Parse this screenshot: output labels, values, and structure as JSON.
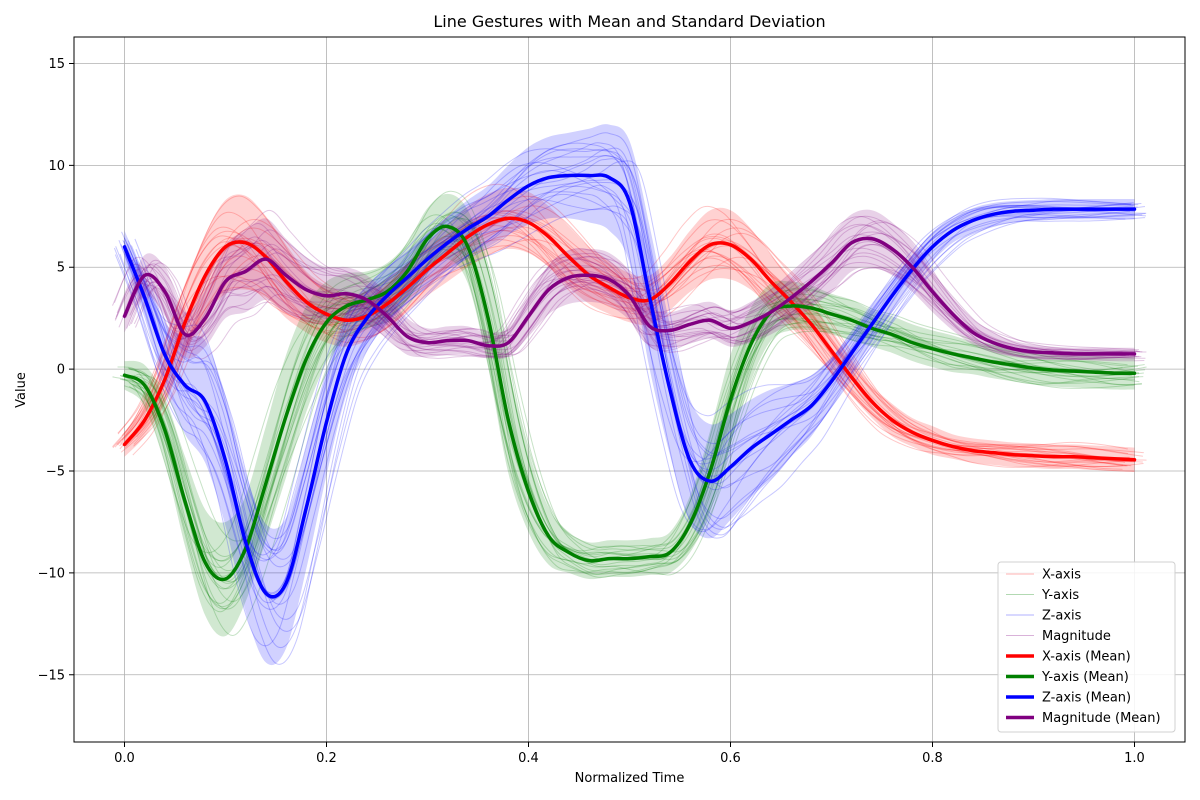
{
  "chart_data": {
    "type": "line",
    "title": "Line Gestures with Mean and Standard Deviation",
    "xlabel": "Normalized Time",
    "ylabel": "Value",
    "xlim": [
      -0.05,
      1.05
    ],
    "ylim": [
      -18.3,
      16.3
    ],
    "xticks": [
      0.0,
      0.2,
      0.4,
      0.6,
      0.8,
      1.0
    ],
    "xtick_labels": [
      "0.0",
      "0.2",
      "0.4",
      "0.6",
      "0.8",
      "1.0"
    ],
    "yticks": [
      -15,
      -10,
      -5,
      0,
      5,
      10,
      15
    ],
    "ytick_labels": [
      "−15",
      "−10",
      "−5",
      "0",
      "5",
      "10",
      "15"
    ],
    "grid": true,
    "legend_position": "bottom-right",
    "legend": [
      {
        "label": "X-axis",
        "color": "#ff0000",
        "style": "thin"
      },
      {
        "label": "Y-axis",
        "color": "#008000",
        "style": "thin"
      },
      {
        "label": "Z-axis",
        "color": "#0000ff",
        "style": "thin"
      },
      {
        "label": "Magnitude",
        "color": "#800080",
        "style": "thin"
      },
      {
        "label": "X-axis (Mean)",
        "color": "#ff0000",
        "style": "thick"
      },
      {
        "label": "Y-axis (Mean)",
        "color": "#008000",
        "style": "thick"
      },
      {
        "label": "Z-axis (Mean)",
        "color": "#0000ff",
        "style": "thick"
      },
      {
        "label": "Magnitude (Mean)",
        "color": "#800080",
        "style": "thick"
      }
    ],
    "x": [
      0.0,
      0.02,
      0.04,
      0.06,
      0.08,
      0.1,
      0.12,
      0.14,
      0.16,
      0.18,
      0.2,
      0.22,
      0.24,
      0.26,
      0.28,
      0.3,
      0.32,
      0.34,
      0.36,
      0.38,
      0.4,
      0.42,
      0.44,
      0.46,
      0.48,
      0.5,
      0.52,
      0.54,
      0.56,
      0.58,
      0.6,
      0.62,
      0.64,
      0.66,
      0.68,
      0.7,
      0.72,
      0.74,
      0.76,
      0.78,
      0.8,
      0.82,
      0.84,
      0.86,
      0.88,
      0.9,
      0.92,
      0.94,
      0.96,
      0.98,
      1.0
    ],
    "series": [
      {
        "name": "X-axis (Mean)",
        "color": "#ff0000",
        "values": [
          -3.7,
          -2.5,
          -0.5,
          2.3,
          4.6,
          6.0,
          6.2,
          5.5,
          4.3,
          3.3,
          2.7,
          2.4,
          2.6,
          3.2,
          4.0,
          4.9,
          5.7,
          6.5,
          7.1,
          7.4,
          7.2,
          6.5,
          5.5,
          4.6,
          4.0,
          3.5,
          3.4,
          4.2,
          5.3,
          6.1,
          6.1,
          5.4,
          4.3,
          3.3,
          2.2,
          0.9,
          -0.4,
          -1.6,
          -2.5,
          -3.1,
          -3.5,
          -3.8,
          -4.0,
          -4.1,
          -4.2,
          -4.25,
          -4.3,
          -4.3,
          -4.35,
          -4.4,
          -4.45
        ],
        "spread": [
          0.6,
          0.8,
          1.2,
          1.6,
          2.0,
          2.3,
          2.3,
          2.0,
          1.8,
          1.5,
          1.4,
          1.3,
          1.2,
          1.2,
          1.2,
          1.3,
          1.4,
          1.5,
          1.5,
          1.5,
          1.5,
          1.5,
          1.5,
          1.4,
          1.3,
          1.2,
          1.2,
          1.3,
          1.5,
          1.7,
          1.7,
          1.5,
          1.3,
          1.2,
          1.1,
          1.0,
          0.9,
          0.8,
          0.8,
          0.7,
          0.7,
          0.6,
          0.6,
          0.6,
          0.6,
          0.6,
          0.6,
          0.6,
          0.6,
          0.6,
          0.6
        ]
      },
      {
        "name": "Y-axis (Mean)",
        "color": "#008000",
        "values": [
          -0.3,
          -0.8,
          -3.0,
          -6.5,
          -9.5,
          -10.3,
          -8.8,
          -5.6,
          -2.3,
          0.5,
          2.3,
          3.1,
          3.4,
          3.8,
          4.8,
          6.4,
          7.0,
          6.0,
          2.5,
          -2.5,
          -6.0,
          -8.2,
          -9.0,
          -9.4,
          -9.3,
          -9.3,
          -9.2,
          -9.0,
          -7.6,
          -5.0,
          -1.5,
          1.2,
          2.8,
          3.1,
          3.0,
          2.7,
          2.4,
          2.0,
          1.7,
          1.3,
          1.0,
          0.75,
          0.55,
          0.35,
          0.2,
          0.05,
          -0.05,
          -0.1,
          -0.15,
          -0.2,
          -0.2
        ],
        "spread": [
          0.7,
          1.0,
          1.6,
          2.2,
          2.6,
          2.8,
          2.6,
          2.8,
          3.0,
          2.6,
          2.0,
          1.6,
          1.4,
          1.4,
          1.4,
          1.5,
          1.6,
          1.8,
          2.4,
          2.6,
          2.0,
          1.4,
          1.0,
          0.9,
          0.9,
          0.9,
          0.9,
          1.0,
          1.4,
          2.0,
          2.2,
          1.8,
          1.4,
          1.2,
          1.1,
          1.0,
          1.0,
          0.9,
          0.9,
          0.9,
          0.9,
          0.9,
          0.8,
          0.8,
          0.8,
          0.8,
          0.8,
          0.8,
          0.8,
          0.8,
          0.8
        ]
      },
      {
        "name": "Z-axis (Mean)",
        "color": "#0000ff",
        "values": [
          6.0,
          3.5,
          0.7,
          -0.8,
          -1.6,
          -4.5,
          -8.5,
          -11.0,
          -10.5,
          -6.8,
          -2.6,
          0.8,
          2.5,
          3.6,
          4.5,
          5.4,
          6.2,
          6.9,
          7.5,
          8.3,
          9.0,
          9.4,
          9.5,
          9.5,
          9.4,
          8.2,
          3.5,
          -1.0,
          -4.5,
          -5.5,
          -4.8,
          -3.9,
          -3.2,
          -2.5,
          -1.8,
          -0.6,
          0.8,
          2.2,
          3.6,
          4.9,
          6.0,
          6.8,
          7.3,
          7.6,
          7.75,
          7.8,
          7.85,
          7.85,
          7.85,
          7.85,
          7.85
        ],
        "spread": [
          0.8,
          1.0,
          1.6,
          2.4,
          3.0,
          3.2,
          3.4,
          3.4,
          3.2,
          3.0,
          2.6,
          2.0,
          1.6,
          1.4,
          1.3,
          1.3,
          1.3,
          1.4,
          1.5,
          1.7,
          1.9,
          2.0,
          2.1,
          2.3,
          2.6,
          3.0,
          3.5,
          3.2,
          3.0,
          2.8,
          2.6,
          2.4,
          2.2,
          1.8,
          1.5,
          1.2,
          1.0,
          0.9,
          0.8,
          0.7,
          0.7,
          0.6,
          0.6,
          0.55,
          0.5,
          0.5,
          0.5,
          0.5,
          0.5,
          0.5,
          0.5
        ]
      },
      {
        "name": "Magnitude (Mean)",
        "color": "#800080",
        "values": [
          2.6,
          4.6,
          3.8,
          1.7,
          2.5,
          4.3,
          4.8,
          5.4,
          4.6,
          3.9,
          3.6,
          3.7,
          3.4,
          2.6,
          1.6,
          1.3,
          1.4,
          1.4,
          1.15,
          1.3,
          2.6,
          3.9,
          4.5,
          4.6,
          4.4,
          3.6,
          2.1,
          1.9,
          2.2,
          2.4,
          2.0,
          2.3,
          2.8,
          3.5,
          4.3,
          5.2,
          6.2,
          6.4,
          5.9,
          5.0,
          3.8,
          2.7,
          1.8,
          1.3,
          1.0,
          0.85,
          0.8,
          0.75,
          0.75,
          0.75,
          0.75
        ],
        "spread": [
          0.8,
          1.0,
          1.2,
          1.1,
          1.4,
          1.8,
          2.0,
          2.0,
          1.8,
          1.6,
          1.4,
          1.3,
          1.2,
          1.1,
          0.9,
          0.7,
          0.7,
          0.7,
          0.6,
          0.7,
          1.0,
          1.2,
          1.3,
          1.3,
          1.3,
          1.2,
          1.0,
          0.9,
          0.9,
          0.9,
          0.9,
          1.0,
          1.1,
          1.2,
          1.3,
          1.4,
          1.4,
          1.4,
          1.3,
          1.2,
          1.0,
          0.8,
          0.6,
          0.5,
          0.4,
          0.35,
          0.3,
          0.3,
          0.3,
          0.3,
          0.3
        ]
      }
    ]
  }
}
